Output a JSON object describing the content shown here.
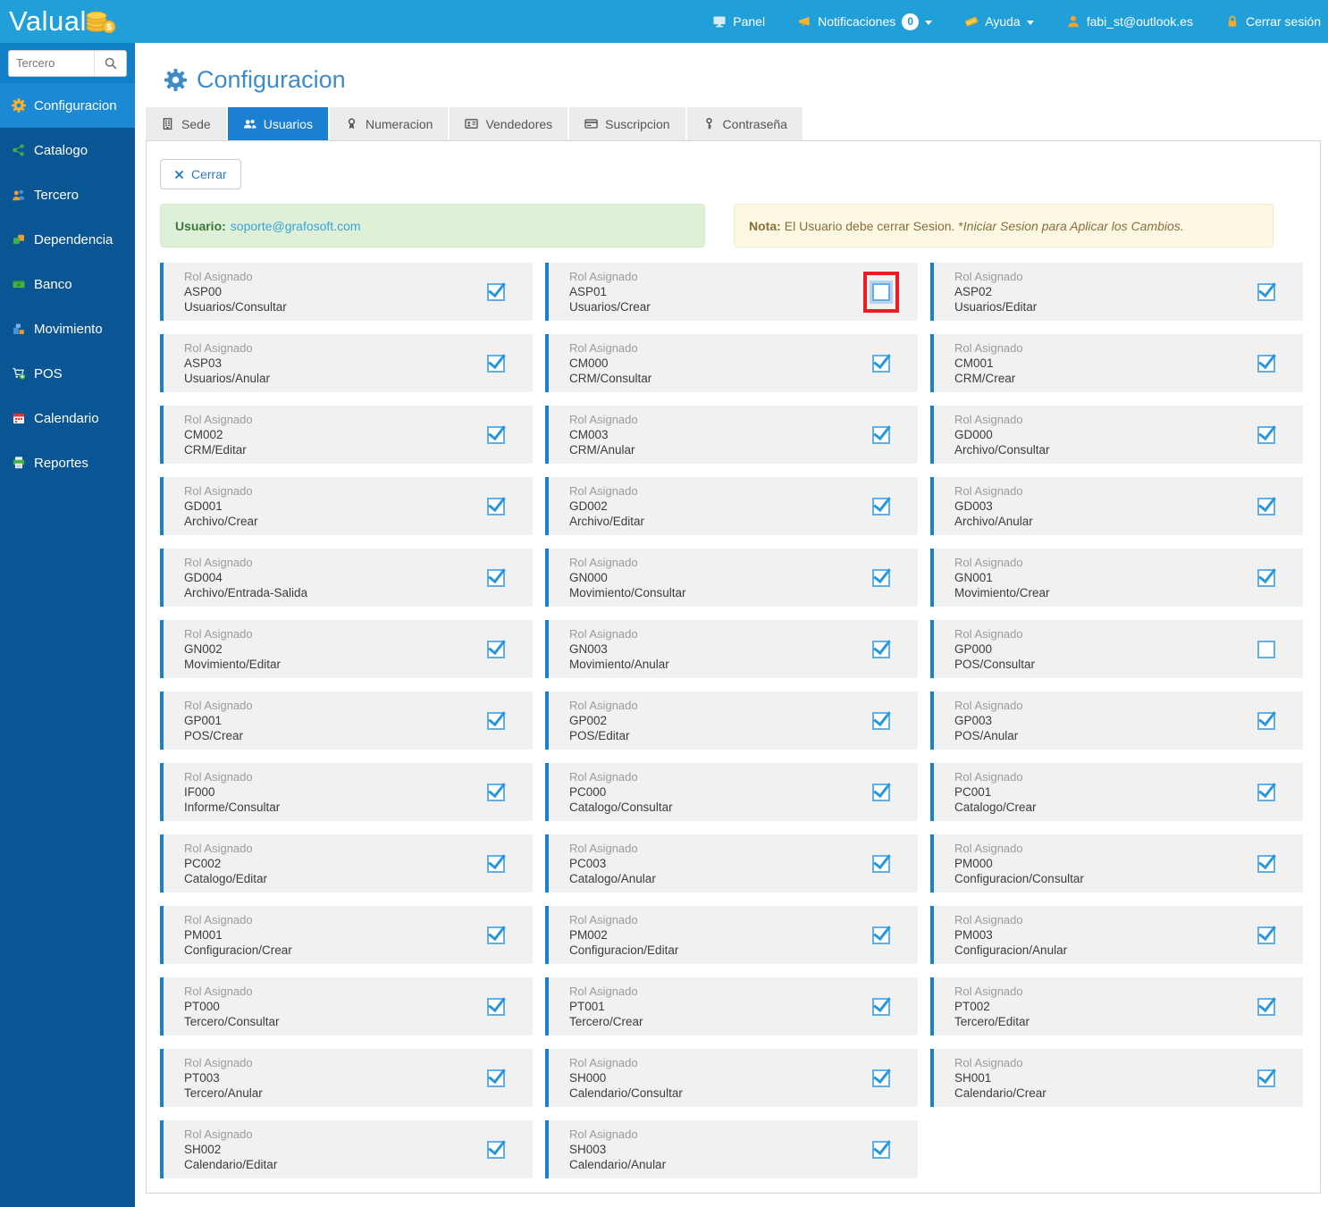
{
  "topbar": {
    "logo": "Valual",
    "nav": [
      {
        "label": "Panel",
        "icon": "monitor"
      },
      {
        "label": "Notificaciones",
        "icon": "megaphone",
        "badge": "0",
        "caret": true
      },
      {
        "label": "Ayuda",
        "icon": "ticket",
        "caret": true
      },
      {
        "label": "fabi_st@outlook.es",
        "icon": "user"
      },
      {
        "label": "Cerrar sesión",
        "icon": "lock"
      }
    ]
  },
  "sidebar": {
    "search_placeholder": "Tercero",
    "items": [
      {
        "label": "Configuracion",
        "icon": "gear",
        "active": true
      },
      {
        "label": "Catalogo",
        "icon": "catalogo",
        "active": false
      },
      {
        "label": "Tercero",
        "icon": "tercero",
        "active": false
      },
      {
        "label": "Dependencia",
        "icon": "dependencia",
        "active": false
      },
      {
        "label": "Banco",
        "icon": "banco",
        "active": false
      },
      {
        "label": "Movimiento",
        "icon": "movimiento",
        "active": false
      },
      {
        "label": "POS",
        "icon": "pos",
        "active": false
      },
      {
        "label": "Calendario",
        "icon": "calendario",
        "active": false
      },
      {
        "label": "Reportes",
        "icon": "reportes",
        "active": false
      }
    ]
  },
  "page": {
    "title": "Configuracion",
    "tabs": [
      {
        "label": "Sede",
        "icon": "building",
        "active": false
      },
      {
        "label": "Usuarios",
        "icon": "people",
        "active": true
      },
      {
        "label": "Numeracion",
        "icon": "ribbon",
        "active": false
      },
      {
        "label": "Vendedores",
        "icon": "idcard",
        "active": false
      },
      {
        "label": "Suscripcion",
        "icon": "card",
        "active": false
      },
      {
        "label": "Contraseña",
        "icon": "key",
        "active": false
      }
    ],
    "close_button": "Cerrar",
    "user_label": "Usuario:",
    "user_email": "soporte@grafosoft.com",
    "note_label": "Nota:",
    "note_text": "El Usuario debe cerrar Sesion. * ",
    "note_italic": "Iniciar Sesion para Aplicar los Cambios."
  },
  "roles": {
    "card_label": "Rol Asignado",
    "items": [
      {
        "code": "ASP00",
        "permission": "Usuarios/Consultar",
        "checked": true,
        "highlighted": false
      },
      {
        "code": "ASP01",
        "permission": "Usuarios/Crear",
        "checked": false,
        "highlighted": true
      },
      {
        "code": "ASP02",
        "permission": "Usuarios/Editar",
        "checked": true,
        "highlighted": false
      },
      {
        "code": "ASP03",
        "permission": "Usuarios/Anular",
        "checked": true,
        "highlighted": false
      },
      {
        "code": "CM000",
        "permission": "CRM/Consultar",
        "checked": true,
        "highlighted": false
      },
      {
        "code": "CM001",
        "permission": "CRM/Crear",
        "checked": true,
        "highlighted": false
      },
      {
        "code": "CM002",
        "permission": "CRM/Editar",
        "checked": true,
        "highlighted": false
      },
      {
        "code": "CM003",
        "permission": "CRM/Anular",
        "checked": true,
        "highlighted": false
      },
      {
        "code": "GD000",
        "permission": "Archivo/Consultar",
        "checked": true,
        "highlighted": false
      },
      {
        "code": "GD001",
        "permission": "Archivo/Crear",
        "checked": true,
        "highlighted": false
      },
      {
        "code": "GD002",
        "permission": "Archivo/Editar",
        "checked": true,
        "highlighted": false
      },
      {
        "code": "GD003",
        "permission": "Archivo/Anular",
        "checked": true,
        "highlighted": false
      },
      {
        "code": "GD004",
        "permission": "Archivo/Entrada-Salida",
        "checked": true,
        "highlighted": false
      },
      {
        "code": "GN000",
        "permission": "Movimiento/Consultar",
        "checked": true,
        "highlighted": false
      },
      {
        "code": "GN001",
        "permission": "Movimiento/Crear",
        "checked": true,
        "highlighted": false
      },
      {
        "code": "GN002",
        "permission": "Movimiento/Editar",
        "checked": true,
        "highlighted": false
      },
      {
        "code": "GN003",
        "permission": "Movimiento/Anular",
        "checked": true,
        "highlighted": false
      },
      {
        "code": "GP000",
        "permission": "POS/Consultar",
        "checked": false,
        "highlighted": false
      },
      {
        "code": "GP001",
        "permission": "POS/Crear",
        "checked": true,
        "highlighted": false
      },
      {
        "code": "GP002",
        "permission": "POS/Editar",
        "checked": true,
        "highlighted": false
      },
      {
        "code": "GP003",
        "permission": "POS/Anular",
        "checked": true,
        "highlighted": false
      },
      {
        "code": "IF000",
        "permission": "Informe/Consultar",
        "checked": true,
        "highlighted": false
      },
      {
        "code": "PC000",
        "permission": "Catalogo/Consultar",
        "checked": true,
        "highlighted": false
      },
      {
        "code": "PC001",
        "permission": "Catalogo/Crear",
        "checked": true,
        "highlighted": false
      },
      {
        "code": "PC002",
        "permission": "Catalogo/Editar",
        "checked": true,
        "highlighted": false
      },
      {
        "code": "PC003",
        "permission": "Catalogo/Anular",
        "checked": true,
        "highlighted": false
      },
      {
        "code": "PM000",
        "permission": "Configuracion/Consultar",
        "checked": true,
        "highlighted": false
      },
      {
        "code": "PM001",
        "permission": "Configuracion/Crear",
        "checked": true,
        "highlighted": false
      },
      {
        "code": "PM002",
        "permission": "Configuracion/Editar",
        "checked": true,
        "highlighted": false
      },
      {
        "code": "PM003",
        "permission": "Configuracion/Anular",
        "checked": true,
        "highlighted": false
      },
      {
        "code": "PT000",
        "permission": "Tercero/Consultar",
        "checked": true,
        "highlighted": false
      },
      {
        "code": "PT001",
        "permission": "Tercero/Crear",
        "checked": true,
        "highlighted": false
      },
      {
        "code": "PT002",
        "permission": "Tercero/Editar",
        "checked": true,
        "highlighted": false
      },
      {
        "code": "PT003",
        "permission": "Tercero/Anular",
        "checked": true,
        "highlighted": false
      },
      {
        "code": "SH000",
        "permission": "Calendario/Consultar",
        "checked": true,
        "highlighted": false
      },
      {
        "code": "SH001",
        "permission": "Calendario/Crear",
        "checked": true,
        "highlighted": false
      },
      {
        "code": "SH002",
        "permission": "Calendario/Editar",
        "checked": true,
        "highlighted": false
      },
      {
        "code": "SH003",
        "permission": "Calendario/Anular",
        "checked": true,
        "highlighted": false
      }
    ]
  },
  "colors": {
    "topbar_blue": "#219fd9",
    "sidebar_blue": "#0a5593",
    "active_blue": "#1b89d3",
    "accent_blue": "#1b7fd2",
    "checkbox_blue": "#5fb0e6",
    "highlight_red": "#ed1c24",
    "success_bg": "#dff0d8",
    "warning_bg": "#fcf8e3"
  }
}
